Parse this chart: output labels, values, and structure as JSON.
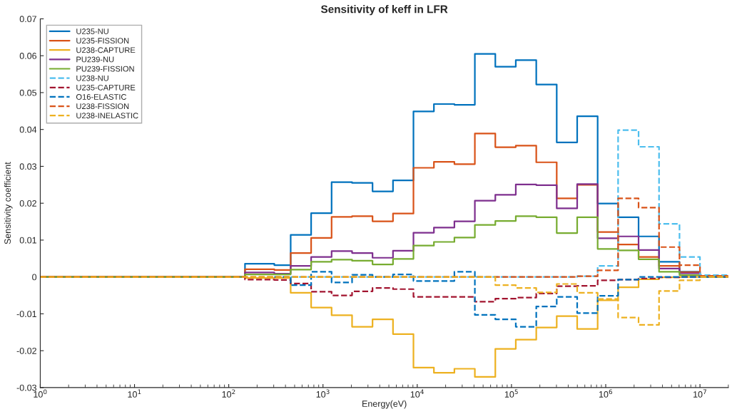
{
  "chart_data": {
    "type": "step",
    "title": "Sensitivity of keff in LFR",
    "xlabel": "Energy(eV)",
    "ylabel": "Sensitivity coefficient",
    "log": "x",
    "grid": false,
    "legend": "top left",
    "xlim": [
      1,
      20000000
    ],
    "ylim": [
      -0.03,
      0.07
    ],
    "xticks": [
      {
        "value": 1,
        "label": "10$^{0}$"
      },
      {
        "value": 10,
        "label": "10$^{1}$"
      },
      {
        "value": 100,
        "label": "10$^{2}$"
      },
      {
        "value": 1000,
        "label": "10$^{3}$"
      },
      {
        "value": 10000,
        "label": "10$^{4}$"
      },
      {
        "value": 100000,
        "label": "10$^{5}$"
      },
      {
        "value": 1000000,
        "label": "10$^{6}$"
      },
      {
        "value": 10000000,
        "label": "10$^{7}$"
      }
    ],
    "yticks": [
      -0.03,
      -0.02,
      -0.01,
      0,
      0.01,
      0.02,
      0.03,
      0.04,
      0.05,
      0.06,
      0.07
    ],
    "x": [
      1,
      148.7,
      304.3,
      454,
      748.5,
      1234,
      2035,
      3355,
      5531,
      9119,
      15030,
      24790,
      40870,
      67380,
      111100,
      183200,
      302000,
      497900,
      820900,
      1353000,
      2231000,
      3679000,
      6065000,
      10000000,
      19640000,
      20000000
    ],
    "series": [
      {
        "name": "U235-NU",
        "color": "#0072bd",
        "line_style": "solid",
        "values": [
          0,
          0.0036,
          0.0032,
          0.0114,
          0.0173,
          0.0257,
          0.0255,
          0.0232,
          0.0262,
          0.0449,
          0.0469,
          0.0467,
          0.0605,
          0.057,
          0.0588,
          0.0522,
          0.0365,
          0.0436,
          0.0199,
          0.0162,
          0.011,
          0.0041,
          0.0014,
          0.0002,
          0,
          0
        ]
      },
      {
        "name": "U235-FISSION",
        "color": "#d95319",
        "line_style": "solid",
        "values": [
          0,
          0.0021,
          0.0019,
          0.0065,
          0.0106,
          0.0163,
          0.0165,
          0.0151,
          0.0172,
          0.0296,
          0.0312,
          0.0306,
          0.0389,
          0.0352,
          0.0356,
          0.0311,
          0.0213,
          0.025,
          0.0122,
          0.0088,
          0.0054,
          0.003,
          0.0013,
          0.0001,
          0,
          0
        ]
      },
      {
        "name": "U238-CAPTURE",
        "color": "#edb120",
        "line_style": "solid",
        "values": [
          0,
          -0.0003,
          -0.0003,
          -0.0043,
          -0.0083,
          -0.0104,
          -0.0135,
          -0.0115,
          -0.0155,
          -0.0246,
          -0.026,
          -0.0249,
          -0.0271,
          -0.0195,
          -0.017,
          -0.0137,
          -0.0106,
          -0.0141,
          -0.0063,
          -0.0028,
          -0.0006,
          -0.0001,
          0,
          0,
          0,
          0
        ]
      },
      {
        "name": "PU239-NU",
        "color": "#7e2f8e",
        "line_style": "solid",
        "values": [
          0,
          0.0012,
          0.0009,
          0.003,
          0.0054,
          0.007,
          0.0065,
          0.0052,
          0.0071,
          0.012,
          0.0134,
          0.0151,
          0.0207,
          0.0223,
          0.0251,
          0.0249,
          0.0186,
          0.0252,
          0.0105,
          0.011,
          0.0073,
          0.0023,
          0.001,
          0,
          0,
          0
        ]
      },
      {
        "name": "PU239-FISSION",
        "color": "#77ac30",
        "line_style": "solid",
        "values": [
          0,
          0.0007,
          0.0007,
          0.002,
          0.0041,
          0.0047,
          0.0044,
          0.0034,
          0.0049,
          0.0085,
          0.0095,
          0.0107,
          0.0141,
          0.0152,
          0.0165,
          0.0162,
          0.0119,
          0.0162,
          0.0076,
          0.0072,
          0.0048,
          0.0014,
          0.0005,
          0,
          0,
          0
        ]
      },
      {
        "name": "U238-NU",
        "color": "#4dbeee",
        "line_style": "dashed",
        "values": [
          null,
          null,
          null,
          0,
          0,
          0,
          0,
          0,
          0,
          0,
          0,
          0,
          0,
          0,
          0,
          0,
          0,
          0.0002,
          0.003,
          0.0398,
          0.0353,
          0.0144,
          0.0054,
          0.0005,
          0,
          0
        ]
      },
      {
        "name": "U235-CAPTURE",
        "color": "#a2142f",
        "line_style": "dashed",
        "values": [
          0,
          -0.0007,
          -0.0008,
          -0.0018,
          -0.004,
          -0.005,
          -0.0039,
          -0.003,
          -0.0033,
          -0.0054,
          -0.0054,
          -0.0054,
          -0.0067,
          -0.0059,
          -0.0056,
          -0.0045,
          -0.0025,
          -0.0024,
          -0.0009,
          -0.0007,
          -0.0004,
          -0.0001,
          0,
          0,
          0,
          0
        ]
      },
      {
        "name": "O16-ELASTIC",
        "color": "#0072bd",
        "line_style": "dashed",
        "values": [
          null,
          null,
          0,
          -0.0022,
          0.0014,
          -0.0015,
          0.0006,
          0,
          0.0007,
          -0.0011,
          -0.0011,
          0.0014,
          -0.0103,
          -0.0115,
          -0.0135,
          -0.008,
          -0.0054,
          -0.0098,
          -0.0051,
          -0.0007,
          0,
          0,
          0,
          0,
          0,
          0
        ]
      },
      {
        "name": "U238-FISSION",
        "color": "#d95319",
        "line_style": "dashed",
        "values": [
          0,
          0,
          0,
          0,
          0,
          0,
          0,
          0,
          0,
          0,
          0,
          0,
          0,
          0,
          0,
          0,
          0,
          0.0002,
          0.0018,
          0.0213,
          0.0188,
          0.0081,
          0.0032,
          0.0003,
          0,
          0
        ]
      },
      {
        "name": "U238-INELASTIC",
        "color": "#edb120",
        "line_style": "dashed",
        "values": [
          0,
          0,
          0,
          0,
          0,
          0,
          0,
          0,
          0,
          0,
          0,
          0,
          0,
          -0.0022,
          -0.003,
          -0.0042,
          -0.0019,
          -0.0043,
          -0.006,
          -0.011,
          -0.013,
          -0.0038,
          -0.0009,
          0,
          0,
          0
        ]
      }
    ]
  }
}
